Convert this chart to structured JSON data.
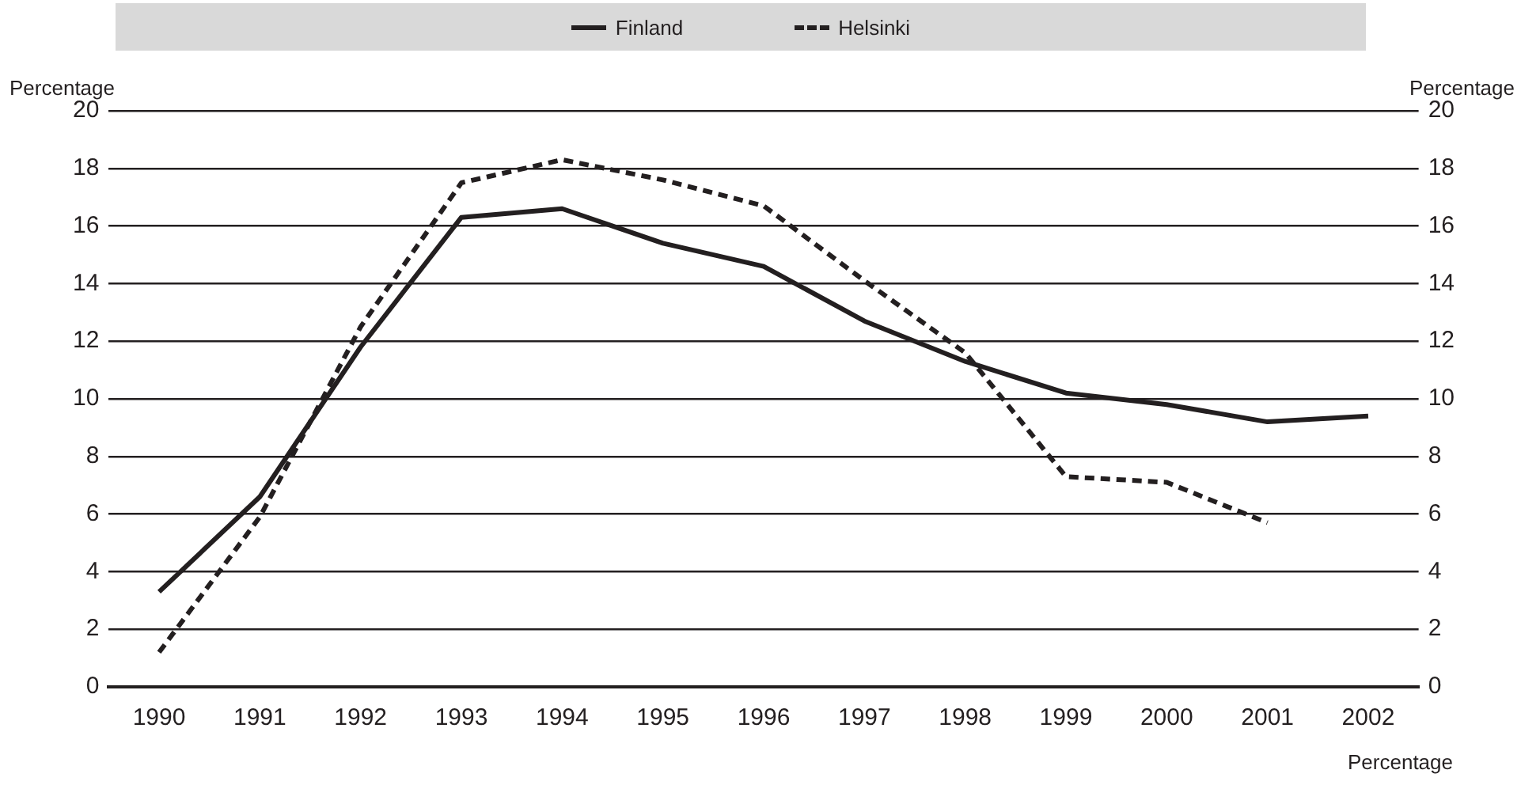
{
  "chart_data": {
    "type": "line",
    "categories": [
      "1990",
      "1991",
      "1992",
      "1993",
      "1994",
      "1995",
      "1996",
      "1997",
      "1998",
      "1999",
      "2000",
      "2001",
      "2002"
    ],
    "series": [
      {
        "name": "Finland",
        "color": "#231f20",
        "line_style": "solid",
        "values": [
          3.3,
          6.6,
          11.8,
          16.3,
          16.6,
          15.4,
          14.6,
          12.7,
          11.3,
          10.2,
          9.8,
          9.2,
          9.4
        ]
      },
      {
        "name": "Helsinki",
        "color": "#231f20",
        "line_style": "dashed",
        "values": [
          1.2,
          5.9,
          12.5,
          17.5,
          18.3,
          17.6,
          16.7,
          14.1,
          11.6,
          7.3,
          7.1,
          5.7,
          null
        ]
      }
    ],
    "ylabel": "Percentage",
    "y2label": "Percentage",
    "xlabel": "Percentage",
    "ylim": [
      0,
      20
    ],
    "yticks": [
      0,
      2,
      4,
      6,
      8,
      10,
      12,
      14,
      16,
      18,
      20
    ],
    "y2lim": [
      0,
      20
    ],
    "y2ticks": [
      0,
      2,
      4,
      6,
      8,
      10,
      12,
      14,
      16,
      18,
      20
    ],
    "grid": "y",
    "legend": "top",
    "marker": "none"
  }
}
